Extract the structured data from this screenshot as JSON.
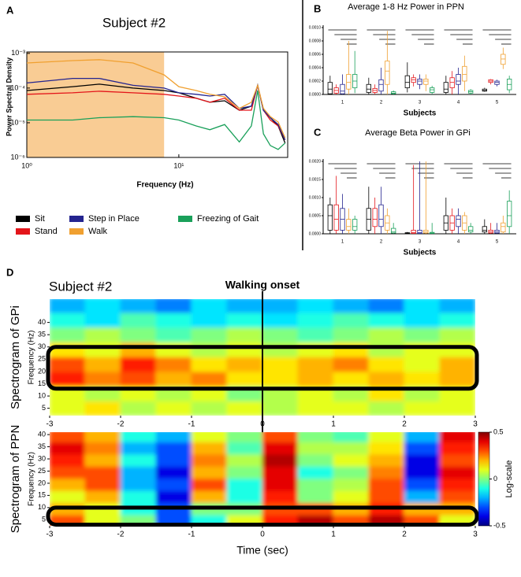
{
  "chart_data": [
    {
      "type": "line",
      "panel": "A",
      "title": "Subject #2",
      "xlabel": "Frequency (Hz)",
      "ylabel": "Power Spectral Density",
      "xscale": "log",
      "yscale": "log",
      "xlim": [
        1,
        52
      ],
      "ylim": [
        1e-06,
        0.0011
      ],
      "xticks": [
        {
          "value": 1,
          "label": "10⁰"
        },
        {
          "value": 10,
          "label": "10¹"
        }
      ],
      "yticks": [
        {
          "value": 1e-06,
          "label": "10⁻⁶"
        },
        {
          "value": 1e-05,
          "label": "10⁻⁵"
        },
        {
          "value": 0.0001,
          "label": "10⁻⁴"
        },
        {
          "value": 0.001,
          "label": "10⁻³"
        }
      ],
      "shaded_range": [
        1,
        8
      ],
      "shaded_color": "#f9cc94",
      "x": [
        1,
        2,
        3,
        5,
        8,
        10,
        13,
        16,
        20,
        25,
        30,
        33,
        36,
        40,
        45,
        50
      ],
      "series": [
        {
          "name": "Sit",
          "color": "#000000",
          "values": [
            8.5e-05,
            0.00011,
            0.00013,
            0.0001,
            8.5e-05,
            7.3e-05,
            5.1e-05,
            3.9e-05,
            4.3e-05,
            2.3e-05,
            3e-05,
            0.00012,
            2.3e-05,
            1.4e-05,
            8.1e-06,
            2.6e-06
          ]
        },
        {
          "name": "Stand",
          "color": "#e3151a",
          "values": [
            6.6e-05,
            7.3e-05,
            8.1e-05,
            7.3e-05,
            6.6e-05,
            5.9e-05,
            5.1e-05,
            3.9e-05,
            5.1e-05,
            2.3e-05,
            2.3e-05,
            0.00012,
            2.3e-05,
            1.2e-05,
            8.1e-06,
            3.2e-06
          ]
        },
        {
          "name": "Step in Place",
          "color": "#24248f",
          "values": [
            0.00014,
            0.00019,
            0.00019,
            0.00012,
            0.0001,
            7.3e-05,
            6.6e-05,
            5.9e-05,
            6.6e-05,
            2.6e-05,
            3e-05,
            0.00012,
            2.3e-05,
            1.4e-05,
            8.9e-06,
            3.2e-06
          ]
        },
        {
          "name": "Walk",
          "color": "#f0a030",
          "values": [
            0.00053,
            0.00062,
            0.00066,
            0.00053,
            0.00024,
            0.00011,
            8.5e-05,
            6.6e-05,
            5.6e-05,
            2.6e-05,
            3.9e-05,
            0.00012,
            2.6e-05,
            1.5e-05,
            1.05e-05,
            3.7e-06
          ]
        },
        {
          "name": "Freezing of Gait",
          "color": "#1aa05a",
          "values": [
            1.2e-05,
            1.2e-05,
            1.4e-05,
            1.5e-05,
            1.4e-05,
            1.2e-05,
            8.1e-06,
            6.3e-06,
            8.9e-06,
            2.8e-06,
            8.1e-06,
            8.5e-05,
            4.8e-06,
            2.2e-06,
            1.7e-06,
            2.6e-06
          ]
        }
      ]
    },
    {
      "type": "box",
      "panel": "B",
      "title": "Average 1-8 Hz Power in PPN",
      "xlabel": "Subjects",
      "categories": [
        "1",
        "2",
        "3",
        "4",
        "5"
      ],
      "ylim": [
        0,
        0.001
      ],
      "yticks": [
        {
          "value": 0,
          "label": "0.0000"
        },
        {
          "value": 0.0002,
          "label": "0.0002"
        },
        {
          "value": 0.0004,
          "label": "0.0004"
        },
        {
          "value": 0.0006,
          "label": "0.0006"
        },
        {
          "value": 0.0008,
          "label": "0.0008"
        },
        {
          "value": 0.001,
          "label": "0.0010"
        }
      ],
      "series": [
        {
          "color": "#000000",
          "boxes": [
            [
              0,
              1e-05,
              8e-05,
              0.00018,
              0.00028
            ],
            [
              0,
              3e-05,
              8e-05,
              0.00015,
              0.00025
            ],
            [
              3e-05,
              0.0001,
              0.00018,
              0.00028,
              0.00048
            ],
            [
              0,
              3e-05,
              8e-05,
              0.00018,
              0.00028
            ],
            [
              4e-05,
              5e-05,
              6e-05,
              8e-05,
              0.0001
            ]
          ]
        },
        {
          "color": "#e3151a",
          "boxes": [
            [
              0,
              2e-05,
              6e-05,
              0.0001,
              0.00015
            ],
            [
              0,
              3e-05,
              6e-05,
              9e-05,
              0.00015
            ],
            [
              0.00012,
              0.00018,
              0.00022,
              0.00025,
              0.0003
            ],
            [
              0,
              0.0001,
              0.00018,
              0.00025,
              0.00035
            ],
            [
              0.00015,
              0.00018,
              0.0002,
              0.00022,
              0.00023
            ]
          ]
        },
        {
          "color": "#24248f",
          "boxes": [
            [
              0,
              1e-05,
              5e-05,
              0.00015,
              0.0003
            ],
            [
              0,
              5e-05,
              0.00015,
              0.00022,
              0.0004
            ],
            [
              8e-05,
              0.00015,
              0.0002,
              0.00023,
              0.0003
            ],
            [
              0,
              0.00015,
              0.0002,
              0.0003,
              0.0004
            ],
            [
              0.00012,
              0.00015,
              0.00018,
              0.0002,
              0.00022
            ]
          ]
        },
        {
          "color": "#f0a030",
          "boxes": [
            [
              0,
              8e-05,
              0.00018,
              0.0003,
              0.0008
            ],
            [
              0,
              0.00015,
              0.00035,
              0.0005,
              0.00095
            ],
            [
              5e-05,
              0.00015,
              0.0002,
              0.00023,
              0.0003
            ],
            [
              5e-05,
              0.0002,
              0.0003,
              0.00042,
              0.00058
            ],
            [
              0.00038,
              0.00045,
              0.00053,
              0.0006,
              0.0007
            ]
          ]
        },
        {
          "color": "#1aa05a",
          "boxes": [
            [
              2e-05,
              0.0001,
              0.0002,
              0.0003,
              0.00065
            ],
            [
              0,
              1e-05,
              2e-05,
              4e-05,
              6e-05
            ],
            [
              0,
              3e-05,
              7e-05,
              0.0001,
              0.00013
            ],
            [
              0,
              2e-05,
              4e-05,
              6e-05,
              8e-05
            ],
            [
              2e-05,
              7e-05,
              0.00015,
              0.00023,
              0.00028
            ]
          ]
        }
      ]
    },
    {
      "type": "box",
      "panel": "C",
      "title": "Average Beta Power in GPi",
      "xlabel": "Subjects",
      "categories": [
        "1",
        "2",
        "3",
        "4",
        "5"
      ],
      "ylim": [
        0,
        0.002
      ],
      "yticks": [
        {
          "value": 0,
          "label": "0.0000"
        },
        {
          "value": 0.0005,
          "label": "0.0005"
        },
        {
          "value": 0.001,
          "label": "0.0010"
        },
        {
          "value": 0.0015,
          "label": "0.0015"
        },
        {
          "value": 0.002,
          "label": "0.0020"
        }
      ],
      "series": [
        {
          "color": "#000000",
          "boxes": [
            [
              0,
              0.0001,
              0.0005,
              0.0008,
              0.001
            ],
            [
              0,
              0.0001,
              0.0004,
              0.0007,
              0.0013
            ],
            [
              0,
              1e-05,
              2e-05,
              3e-05,
              5e-05
            ],
            [
              0,
              0.0001,
              0.0003,
              0.0005,
              0.001
            ],
            [
              0,
              5e-05,
              0.0001,
              0.0002,
              0.0004
            ]
          ]
        },
        {
          "color": "#e3151a",
          "boxes": [
            [
              0,
              0.0001,
              0.0004,
              0.0008,
              0.0016
            ],
            [
              0,
              0.0002,
              0.0004,
              0.0007,
              0.001
            ],
            [
              0,
              1e-05,
              3e-05,
              0.0001,
              0.0019
            ],
            [
              0,
              0.0001,
              0.0003,
              0.0005,
              0.0007
            ],
            [
              0,
              2e-05,
              5e-05,
              0.0001,
              0.0003
            ]
          ]
        },
        {
          "color": "#24248f",
          "boxes": [
            [
              0,
              0.0001,
              0.0004,
              0.0007,
              0.0011
            ],
            [
              0,
              0.0002,
              0.0004,
              0.0008,
              0.0013
            ],
            [
              0,
              1e-05,
              3e-05,
              0.0001,
              0.002
            ],
            [
              0,
              0.0002,
              0.0004,
              0.0005,
              0.0007
            ],
            [
              0,
              2e-05,
              5e-05,
              0.0001,
              0.0003
            ]
          ]
        },
        {
          "color": "#f0a030",
          "boxes": [
            [
              0,
              0.0001,
              0.0002,
              0.0004,
              0.0007
            ],
            [
              0,
              0.0001,
              0.0003,
              0.0005,
              0.0007
            ],
            [
              0,
              2e-05,
              5e-05,
              0.0001,
              0.002
            ],
            [
              0,
              0.0001,
              0.0003,
              0.0005,
              0.0006
            ],
            [
              0,
              5e-05,
              0.0002,
              0.0003,
              0.0005
            ]
          ]
        },
        {
          "color": "#1aa05a",
          "boxes": [
            [
              0,
              0.0001,
              0.0002,
              0.0004,
              0.0005
            ],
            [
              0,
              2e-05,
              5e-05,
              0.00015,
              0.0003
            ],
            [
              0,
              1e-05,
              2e-05,
              4e-05,
              0.0003
            ],
            [
              0,
              5e-05,
              0.0001,
              0.0002,
              0.0003
            ],
            [
              0,
              0.0002,
              0.0005,
              0.0009,
              0.0012
            ]
          ]
        }
      ]
    },
    {
      "type": "heatmap",
      "panel": "D",
      "title": "Subject #2",
      "ylabel": "Spectrogram of GPi",
      "ysublabel": "Frequency (Hz)",
      "annotation": {
        "text": "Walking onset",
        "x": 0
      },
      "colormap": "jet",
      "clim": [
        -0.5,
        0.5
      ],
      "highlight_range": [
        13,
        30
      ],
      "xlim": [
        -3,
        3
      ],
      "ylim": [
        2,
        49.5
      ],
      "xticks": [
        -3,
        -2,
        -1,
        0,
        1,
        2,
        3
      ],
      "yticks": [
        5,
        10,
        15,
        20,
        25,
        30,
        35,
        40
      ],
      "xbins": [
        -3,
        -2.5,
        -2,
        -1.5,
        -1,
        -0.5,
        0,
        0.5,
        1,
        1.5,
        2,
        2.5,
        3
      ],
      "ybins": [
        2,
        8,
        14,
        20,
        26,
        32,
        38,
        44,
        50
      ],
      "values": [
        [
          0.1,
          0.15,
          0.05,
          0.1,
          0.05,
          0.1,
          0.05,
          0.1,
          0.1,
          0.05,
          0.1,
          0.1
        ],
        [
          0.1,
          0.05,
          0.1,
          0.05,
          0.1,
          0,
          0.05,
          0.1,
          0.05,
          0.15,
          0.05,
          0.1
        ],
        [
          0.35,
          0.25,
          0.3,
          0.2,
          0.25,
          0.15,
          0.15,
          0.2,
          0.15,
          0.2,
          0.15,
          0.2
        ],
        [
          0.3,
          0.2,
          0.35,
          0.25,
          0.15,
          0.2,
          0.15,
          0.2,
          0.25,
          0.15,
          0.1,
          0.2
        ],
        [
          0.15,
          0.1,
          0.2,
          0.1,
          0.05,
          0.1,
          0.05,
          0.1,
          0.15,
          0.05,
          0.1,
          0.1
        ],
        [
          0,
          0.05,
          0,
          -0.05,
          0,
          0.05,
          0,
          -0.05,
          0,
          0.05,
          0,
          0.05
        ],
        [
          -0.1,
          -0.15,
          -0.05,
          -0.1,
          -0.15,
          -0.1,
          -0.15,
          -0.1,
          -0.05,
          -0.1,
          -0.15,
          -0.1
        ],
        [
          -0.2,
          -0.15,
          -0.2,
          -0.25,
          -0.15,
          -0.2,
          -0.2,
          -0.15,
          -0.2,
          -0.25,
          -0.15,
          -0.2
        ]
      ]
    },
    {
      "type": "heatmap",
      "ylabel": "Spectrogram of PPN",
      "ysublabel": "Frequency (Hz)",
      "xlabel": "Time (sec)",
      "colormap": "jet",
      "clim": [
        -0.5,
        0.5
      ],
      "highlight_range": [
        3,
        10
      ],
      "colorbar_ticks": [
        0.5,
        0,
        -0.5
      ],
      "colorbar_label": "Log-scale",
      "xlim": [
        -3,
        3
      ],
      "ylim": [
        2.5,
        41
      ],
      "xticks": [
        -3,
        -2,
        -1,
        0,
        1,
        2,
        3
      ],
      "yticks": [
        5,
        10,
        15,
        20,
        25,
        30,
        35,
        40
      ],
      "xbins": [
        -3,
        -2.5,
        -2,
        -1.5,
        -1,
        -0.5,
        0,
        0.5,
        1,
        1.5,
        2,
        2.5,
        3
      ],
      "ybins": [
        2,
        7,
        12,
        17,
        22,
        27,
        32,
        37,
        42
      ],
      "values": [
        [
          0.3,
          0.1,
          0,
          -0.3,
          -0.1,
          0.1,
          0.35,
          0.45,
          0.3,
          0.45,
          0.3,
          0.1
        ],
        [
          0.2,
          0.1,
          -0.1,
          -0.3,
          0,
          0,
          0.3,
          0.3,
          0.2,
          0.35,
          0.2,
          0.2
        ],
        [
          0.1,
          0.2,
          -0.1,
          -0.4,
          0.2,
          -0.1,
          0.35,
          0,
          0.1,
          0.3,
          -0.2,
          0.3
        ],
        [
          0.2,
          0.3,
          -0.2,
          -0.3,
          0.3,
          -0.1,
          0.4,
          0,
          0.05,
          0.3,
          -0.3,
          0.35
        ],
        [
          0.3,
          0.3,
          -0.2,
          -0.4,
          0.2,
          0,
          0.4,
          -0.1,
          0,
          0.25,
          -0.4,
          0.4
        ],
        [
          0.35,
          0.2,
          -0.1,
          -0.3,
          0.25,
          0.05,
          0.45,
          0,
          0.1,
          0.2,
          -0.4,
          0.3
        ],
        [
          0.4,
          0.25,
          -0.2,
          -0.3,
          0.2,
          -0.05,
          0.4,
          0.05,
          0.05,
          0.15,
          -0.3,
          0.35
        ],
        [
          0.3,
          0.2,
          -0.1,
          -0.2,
          0.1,
          0,
          0.3,
          0,
          -0.05,
          0.1,
          -0.2,
          0.4
        ]
      ]
    }
  ]
}
